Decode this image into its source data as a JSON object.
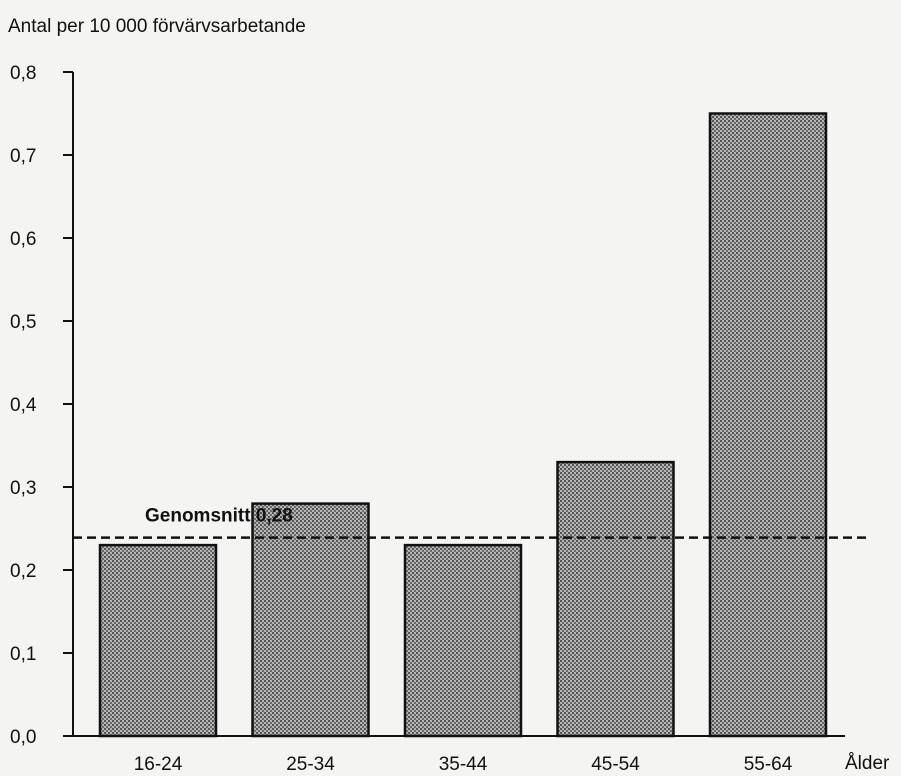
{
  "chart_data": {
    "type": "bar",
    "ylabel": "Antal per 10 000 förvärvsarbetande",
    "xlabel": "Ålder",
    "categories": [
      "16-24",
      "25-34",
      "35-44",
      "45-54",
      "55-64"
    ],
    "values": [
      0.23,
      0.28,
      0.23,
      0.33,
      0.75
    ],
    "ylim": [
      0,
      0.8
    ],
    "yticks": [
      0,
      0.1,
      0.2,
      0.3,
      0.4,
      0.5,
      0.6,
      0.7,
      0.8
    ],
    "ytick_labels": [
      "0,0",
      "0,1",
      "0,2",
      "0,3",
      "0,4",
      "0,5",
      "0,6",
      "0,7",
      "0,8"
    ],
    "reference_line": {
      "value": 0.28,
      "label": "Genomsnitt 0,28",
      "style": "dashed"
    },
    "bar_color": "#8c8c8c",
    "grid": false
  }
}
